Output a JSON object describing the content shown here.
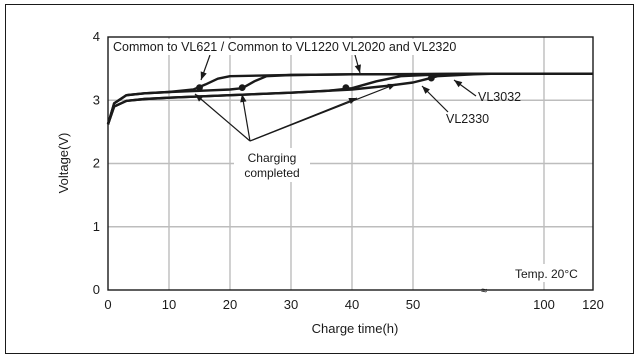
{
  "chart_data": {
    "type": "line",
    "title": "",
    "xlabel": "Charge time(h)",
    "ylabel": "Voltage(V)",
    "xlim": [
      0,
      120
    ],
    "ylim": [
      0,
      4
    ],
    "x_axis_break": "between 60 and 80 (≈)",
    "x_ticks": [
      "0",
      "10",
      "20",
      "30",
      "40",
      "50",
      "100",
      "120"
    ],
    "y_ticks": [
      "0",
      "1",
      "2",
      "3",
      "4"
    ],
    "grid": true,
    "series": [
      {
        "name": "Common to VL621 / Common to VL1220 VL2020 and VL2320",
        "x": [
          0,
          1,
          3,
          6,
          10,
          14,
          16,
          18,
          20,
          25,
          30,
          40,
          50,
          60,
          80,
          100,
          120
        ],
        "y": [
          2.62,
          2.95,
          3.08,
          3.11,
          3.13,
          3.17,
          3.25,
          3.34,
          3.38,
          3.39,
          3.4,
          3.41,
          3.41,
          3.42,
          3.42,
          3.42,
          3.42
        ],
        "charging_completed_at": [
          15,
          3.2
        ]
      },
      {
        "name": "Common to VL621 / Common to VL1220 VL2020 and VL2320",
        "x": [
          0,
          1,
          3,
          6,
          10,
          15,
          20,
          22,
          24,
          26,
          30,
          40,
          60,
          80,
          120
        ],
        "y": [
          2.62,
          2.95,
          3.08,
          3.11,
          3.13,
          3.15,
          3.17,
          3.19,
          3.3,
          3.38,
          3.4,
          3.41,
          3.42,
          3.42,
          3.42
        ],
        "charging_completed_at": [
          22,
          3.2
        ]
      },
      {
        "name": "VL2330",
        "x": [
          0,
          1,
          3,
          6,
          10,
          20,
          30,
          36,
          40,
          44,
          48,
          52,
          60,
          80,
          120
        ],
        "y": [
          2.62,
          2.9,
          2.99,
          3.02,
          3.04,
          3.08,
          3.12,
          3.15,
          3.19,
          3.3,
          3.38,
          3.4,
          3.42,
          3.42,
          3.42
        ],
        "charging_completed_at": [
          39,
          3.2
        ]
      },
      {
        "name": "VL3032",
        "x": [
          0,
          1,
          3,
          6,
          10,
          20,
          30,
          40,
          46,
          50,
          52,
          54,
          60,
          80,
          120
        ],
        "y": [
          2.62,
          2.9,
          2.99,
          3.02,
          3.04,
          3.08,
          3.12,
          3.17,
          3.23,
          3.28,
          3.33,
          3.38,
          3.41,
          3.42,
          3.42
        ],
        "charging_completed_at": [
          53,
          3.35
        ]
      }
    ],
    "annotations": {
      "top_label": "Common to VL621 / Common to VL1220 VL2020 and VL2320",
      "charging_line1": "Charging",
      "charging_line2": "completed",
      "vl3032": "VL3032",
      "vl2330": "VL2330",
      "temp": "Temp. 20°C",
      "break_mark": "≈"
    }
  }
}
